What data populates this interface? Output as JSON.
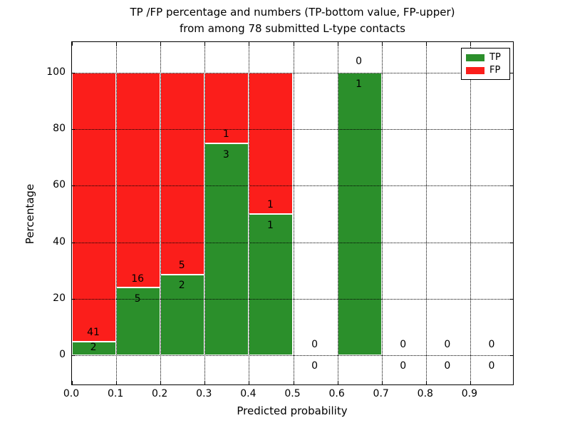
{
  "chart_data": {
    "type": "bar",
    "stacked": true,
    "title_line1": "TP /FP percentage and numbers (TP-bottom value, FP-upper)",
    "title_line2": "from among 78 submitted L-type contacts",
    "xlabel": "Predicted probability",
    "ylabel": "Percentage",
    "x_tick_labels": [
      "0.0",
      "0.1",
      "0.2",
      "0.3",
      "0.4",
      "0.5",
      "0.6",
      "0.7",
      "0.8",
      "0.9"
    ],
    "x_tick_values": [
      0.0,
      0.1,
      0.2,
      0.3,
      0.4,
      0.5,
      0.6,
      0.7,
      0.8,
      0.9
    ],
    "y_tick_labels": [
      "0",
      "20",
      "40",
      "60",
      "80",
      "100"
    ],
    "y_tick_values": [
      0,
      20,
      40,
      60,
      80,
      100
    ],
    "xlim": [
      0.0,
      1.0
    ],
    "ylim": [
      -11,
      111
    ],
    "grid": "dotted, drawn above bars, vertical at each 0.1 and horizontal at each 20",
    "legend_position": "upper right",
    "legend": [
      {
        "label": "TP",
        "color": "#2b8f2b"
      },
      {
        "label": "FP",
        "color": "#fb1e1b"
      }
    ],
    "bins": [
      {
        "range": [
          0.0,
          0.1
        ],
        "tp": 2,
        "fp": 41,
        "tp_pct": 4.65,
        "fp_pct": 95.35
      },
      {
        "range": [
          0.1,
          0.2
        ],
        "tp": 5,
        "fp": 16,
        "tp_pct": 23.81,
        "fp_pct": 76.19
      },
      {
        "range": [
          0.2,
          0.3
        ],
        "tp": 2,
        "fp": 5,
        "tp_pct": 28.57,
        "fp_pct": 71.43
      },
      {
        "range": [
          0.3,
          0.4
        ],
        "tp": 3,
        "fp": 1,
        "tp_pct": 75.0,
        "fp_pct": 25.0
      },
      {
        "range": [
          0.4,
          0.5
        ],
        "tp": 1,
        "fp": 1,
        "tp_pct": 50.0,
        "fp_pct": 50.0
      },
      {
        "range": [
          0.5,
          0.6
        ],
        "tp": 0,
        "fp": 0,
        "tp_pct": 0.0,
        "fp_pct": 0.0
      },
      {
        "range": [
          0.6,
          0.7
        ],
        "tp": 1,
        "fp": 0,
        "tp_pct": 100.0,
        "fp_pct": 0.0
      },
      {
        "range": [
          0.7,
          0.8
        ],
        "tp": 0,
        "fp": 0,
        "tp_pct": 0.0,
        "fp_pct": 0.0
      },
      {
        "range": [
          0.8,
          0.9
        ],
        "tp": 0,
        "fp": 0,
        "tp_pct": 0.0,
        "fp_pct": 0.0
      },
      {
        "range": [
          0.9,
          1.0
        ],
        "tp": 0,
        "fp": 0,
        "tp_pct": 0.0,
        "fp_pct": 0.0
      }
    ],
    "colors": {
      "tp": "#2b8f2b",
      "fp": "#fb1e1b",
      "bar_edge": "#ffffff",
      "grid": "#000000",
      "text": "#000000",
      "background": "#ffffff"
    }
  }
}
